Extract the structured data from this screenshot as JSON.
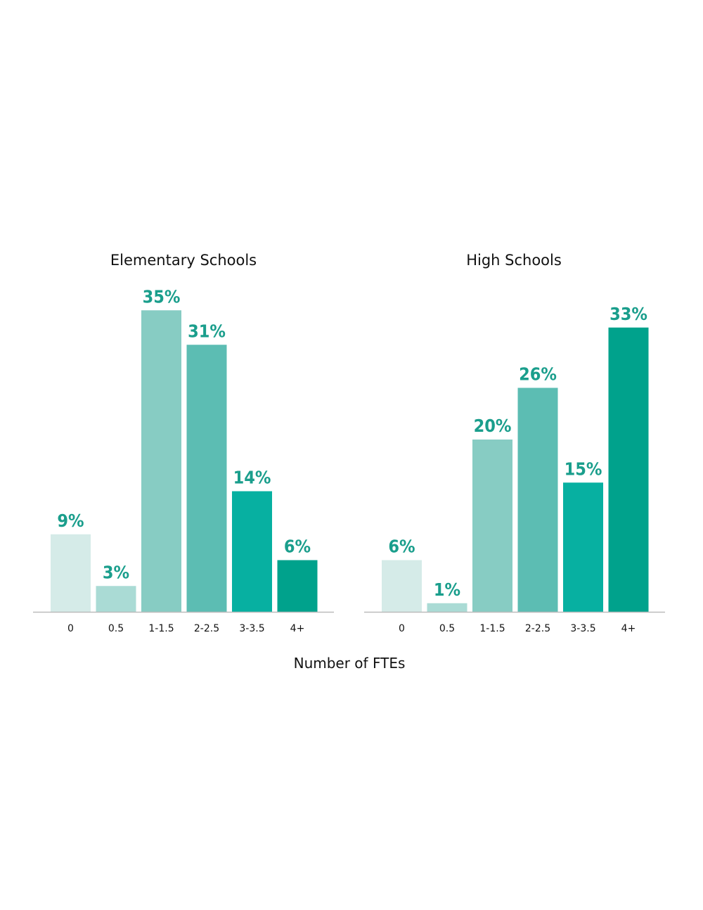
{
  "chart_data": {
    "type": "bar",
    "xlabel": "Number of FTEs",
    "ylabel": "",
    "ylim": [
      0,
      35
    ],
    "grid": false,
    "legend": "none",
    "categories": [
      "0",
      "0.5",
      "1-1.5",
      "2-2.5",
      "3-3.5",
      "4+"
    ],
    "category_colors": [
      "#d5ebe8",
      "#aadbd5",
      "#87ccc3",
      "#5cbdb3",
      "#07b0a1",
      "#00a28c"
    ],
    "label_color": "#1a9e8c",
    "axis_color": "#bbbbbb",
    "panels": [
      {
        "title": "Elementary Schools",
        "values": [
          9,
          3,
          35,
          31,
          14,
          6
        ],
        "value_labels": [
          "9%",
          "3%",
          "35%",
          "31%",
          "14%",
          "6%"
        ]
      },
      {
        "title": "High Schools",
        "values": [
          6,
          1,
          20,
          26,
          15,
          33
        ],
        "value_labels": [
          "6%",
          "1%",
          "20%",
          "26%",
          "15%",
          "33%"
        ]
      }
    ]
  }
}
